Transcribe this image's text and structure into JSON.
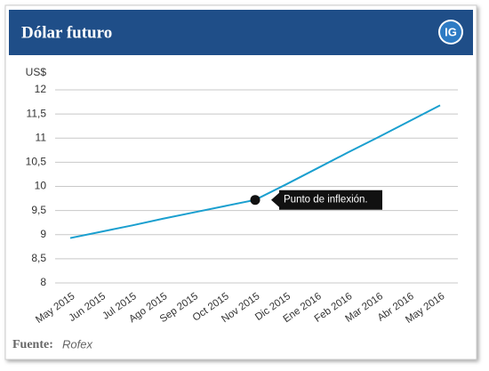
{
  "chart_data": {
    "type": "line",
    "title": "Dólar futuro",
    "logo": "IG",
    "y_label": "US$",
    "categories": [
      "May 2015",
      "Jun 2015",
      "Jul 2015",
      "Ago 2015",
      "Sep 2015",
      "Oct 2015",
      "Nov 2015",
      "Dic 2015",
      "Ene 2016",
      "Feb 2016",
      "Mar 2016",
      "Abr 2016",
      "May 2016"
    ],
    "series": [
      {
        "name": "Dólar futuro",
        "color": "#1a9fcf",
        "values": [
          8.93,
          9.06,
          9.19,
          9.33,
          9.46,
          9.59,
          9.72,
          10.04,
          10.37,
          10.7,
          11.02,
          11.35,
          11.68
        ]
      }
    ],
    "ylim": [
      8,
      12
    ],
    "yticks": [
      8,
      {
        "value": 8.5,
        "label": "8,5"
      },
      9,
      {
        "value": 9.5,
        "label": "9,5"
      },
      10,
      {
        "value": 10.5,
        "label": "10,5"
      },
      11,
      {
        "value": 11.5,
        "label": "11,5"
      },
      12
    ],
    "grid": true,
    "annotation": {
      "text": "Punto de inflexión.",
      "category": "Nov 2015"
    },
    "source_label": "Fuente:",
    "source": "Rofex"
  }
}
